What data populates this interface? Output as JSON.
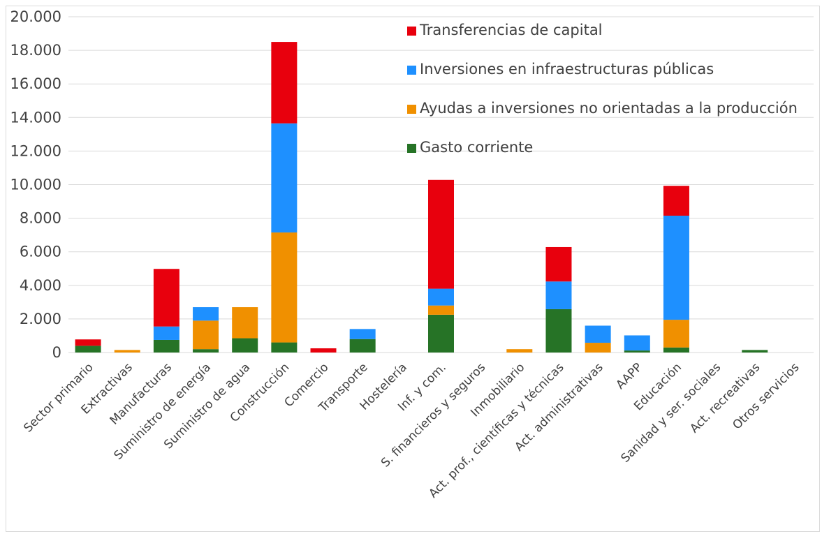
{
  "chart_data": {
    "type": "bar",
    "stacked": true,
    "categories": [
      "Sector primario",
      "Extractivas",
      "Manufacturas",
      "Suministro de energía",
      "Suministro de agua",
      "Construcción",
      "Comercio",
      "Transporte",
      "Hostelería",
      "Inf. y com.",
      "S. financieros y seguros",
      "Inmobiliario",
      "Act. prof., científicas y técnicas",
      "Act. administrativas",
      "AAPP",
      "Educación",
      "Sanidad y ser. sociales",
      "Act. recreativas",
      "Otros servicios"
    ],
    "series": [
      {
        "name": "Gasto corriente",
        "color": "#267326",
        "values": [
          400,
          0,
          750,
          200,
          850,
          600,
          0,
          800,
          0,
          2250,
          0,
          0,
          2580,
          0,
          120,
          300,
          0,
          150,
          0
        ]
      },
      {
        "name": "Ayudas a inversiones no orientadas a la producción",
        "color": "#f09000",
        "values": [
          0,
          150,
          0,
          1700,
          1850,
          6550,
          0,
          0,
          0,
          550,
          0,
          200,
          0,
          580,
          0,
          1650,
          0,
          0,
          0
        ]
      },
      {
        "name": "Inversiones en infraestructuras públicas",
        "color": "#1e90ff",
        "values": [
          0,
          0,
          800,
          800,
          0,
          6500,
          0,
          600,
          0,
          1000,
          0,
          0,
          1650,
          1020,
          900,
          6200,
          0,
          0,
          0
        ]
      },
      {
        "name": "Transferencias de capital",
        "color": "#e8000d",
        "values": [
          380,
          0,
          3430,
          0,
          0,
          4850,
          250,
          0,
          0,
          6480,
          0,
          0,
          2050,
          0,
          0,
          1780,
          0,
          0,
          0
        ]
      }
    ],
    "yticks": [
      "0",
      "2.000",
      "4.000",
      "6.000",
      "8.000",
      "10.000",
      "12.000",
      "14.000",
      "16.000",
      "18.000",
      "20.000"
    ],
    "ylim": [
      0,
      20000
    ],
    "grid": true,
    "legend": "top-right",
    "title": "",
    "xlabel": "",
    "ylabel": ""
  }
}
